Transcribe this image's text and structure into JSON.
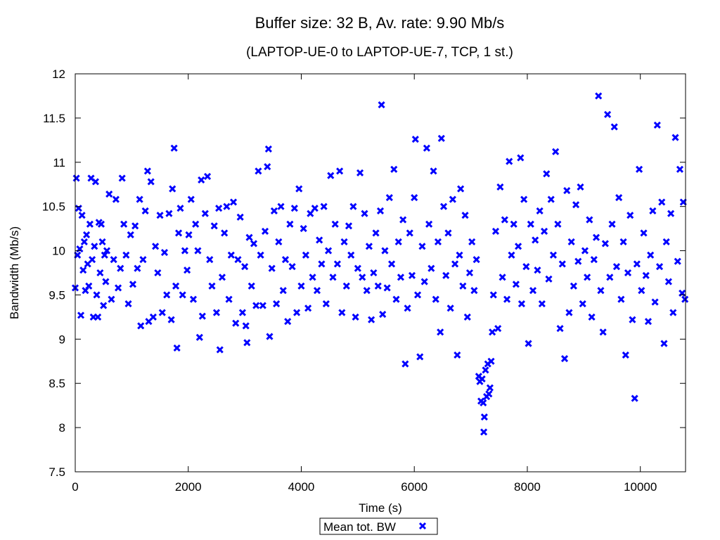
{
  "chart_data": {
    "type": "scatter",
    "title": "Buffer size: 32 B, Av. rate: 9.90 Mb/s",
    "subtitle": "(LAPTOP-UE-0 to LAPTOP-UE-7, TCP, 1 st.)",
    "xlabel": "Time (s)",
    "ylabel": "Bandwidth (Mb/s)",
    "xlim": [
      0,
      10800
    ],
    "ylim": [
      7.5,
      12
    ],
    "x_ticks": [
      {
        "value": 0,
        "label": "0"
      },
      {
        "value": 2000,
        "label": "2000"
      },
      {
        "value": 4000,
        "label": "4000"
      },
      {
        "value": 6000,
        "label": "6000"
      },
      {
        "value": 8000,
        "label": "8000"
      },
      {
        "value": 10000,
        "label": "10000"
      }
    ],
    "y_ticks": [
      {
        "value": 7.5,
        "label": "7.5"
      },
      {
        "value": 8,
        "label": "8"
      },
      {
        "value": 8.5,
        "label": "8.5"
      },
      {
        "value": 9,
        "label": "9"
      },
      {
        "value": 9.5,
        "label": "9.5"
      },
      {
        "value": 10,
        "label": "10"
      },
      {
        "value": 10.5,
        "label": "10.5"
      },
      {
        "value": 11,
        "label": "11"
      },
      {
        "value": 11.5,
        "label": "11.5"
      },
      {
        "value": 12,
        "label": "12"
      }
    ],
    "grid": false,
    "legend_position": "bottom-center",
    "series": [
      {
        "name": "Mean tot. BW",
        "color": "#0000ff",
        "marker": "x",
        "points": [
          [
            0,
            9.58
          ],
          [
            20,
            10.82
          ],
          [
            40,
            9.95
          ],
          [
            60,
            10.48
          ],
          [
            80,
            10.02
          ],
          [
            100,
            9.27
          ],
          [
            120,
            10.4
          ],
          [
            140,
            9.78
          ],
          [
            160,
            10.1
          ],
          [
            180,
            9.55
          ],
          [
            200,
            10.18
          ],
          [
            220,
            9.85
          ],
          [
            240,
            9.6
          ],
          [
            260,
            10.3
          ],
          [
            280,
            10.82
          ],
          [
            300,
            9.9
          ],
          [
            320,
            9.25
          ],
          [
            340,
            10.05
          ],
          [
            360,
            10.78
          ],
          [
            380,
            9.5
          ],
          [
            400,
            9.25
          ],
          [
            420,
            10.32
          ],
          [
            440,
            9.75
          ],
          [
            460,
            10.3
          ],
          [
            480,
            10.1
          ],
          [
            500,
            9.38
          ],
          [
            520,
            9.95
          ],
          [
            540,
            9.65
          ],
          [
            560,
            10.0
          ],
          [
            600,
            10.64
          ],
          [
            640,
            9.45
          ],
          [
            680,
            9.9
          ],
          [
            720,
            10.58
          ],
          [
            760,
            9.58
          ],
          [
            800,
            9.8
          ],
          [
            830,
            10.82
          ],
          [
            860,
            10.3
          ],
          [
            900,
            9.95
          ],
          [
            940,
            9.4
          ],
          [
            980,
            10.18
          ],
          [
            1020,
            9.62
          ],
          [
            1060,
            10.28
          ],
          [
            1100,
            9.8
          ],
          [
            1140,
            10.58
          ],
          [
            1160,
            9.15
          ],
          [
            1200,
            9.9
          ],
          [
            1240,
            10.45
          ],
          [
            1280,
            10.9
          ],
          [
            1300,
            9.2
          ],
          [
            1340,
            10.78
          ],
          [
            1380,
            9.25
          ],
          [
            1420,
            10.05
          ],
          [
            1460,
            9.75
          ],
          [
            1500,
            10.4
          ],
          [
            1540,
            9.3
          ],
          [
            1580,
            9.98
          ],
          [
            1620,
            9.5
          ],
          [
            1660,
            10.42
          ],
          [
            1700,
            9.22
          ],
          [
            1720,
            10.7
          ],
          [
            1750,
            11.16
          ],
          [
            1780,
            9.6
          ],
          [
            1800,
            8.9
          ],
          [
            1830,
            10.2
          ],
          [
            1860,
            10.48
          ],
          [
            1900,
            9.5
          ],
          [
            1940,
            10.0
          ],
          [
            1980,
            9.78
          ],
          [
            2010,
            10.18
          ],
          [
            2050,
            10.58
          ],
          [
            2090,
            9.45
          ],
          [
            2130,
            10.3
          ],
          [
            2170,
            10.0
          ],
          [
            2200,
            9.02
          ],
          [
            2230,
            10.8
          ],
          [
            2250,
            9.26
          ],
          [
            2300,
            10.42
          ],
          [
            2340,
            10.84
          ],
          [
            2380,
            9.9
          ],
          [
            2420,
            9.6
          ],
          [
            2460,
            10.28
          ],
          [
            2500,
            9.3
          ],
          [
            2540,
            10.48
          ],
          [
            2560,
            8.88
          ],
          [
            2600,
            9.7
          ],
          [
            2640,
            10.2
          ],
          [
            2680,
            10.5
          ],
          [
            2720,
            9.45
          ],
          [
            2760,
            9.95
          ],
          [
            2800,
            10.55
          ],
          [
            2840,
            9.18
          ],
          [
            2880,
            9.9
          ],
          [
            2920,
            10.38
          ],
          [
            2960,
            9.3
          ],
          [
            3000,
            9.82
          ],
          [
            3020,
            9.15
          ],
          [
            3040,
            8.96
          ],
          [
            3080,
            10.15
          ],
          [
            3120,
            9.6
          ],
          [
            3160,
            10.08
          ],
          [
            3200,
            9.38
          ],
          [
            3240,
            10.9
          ],
          [
            3280,
            9.95
          ],
          [
            3320,
            9.38
          ],
          [
            3360,
            10.22
          ],
          [
            3400,
            10.95
          ],
          [
            3420,
            11.15
          ],
          [
            3440,
            9.03
          ],
          [
            3480,
            9.8
          ],
          [
            3520,
            10.45
          ],
          [
            3560,
            9.4
          ],
          [
            3600,
            10.1
          ],
          [
            3640,
            10.5
          ],
          [
            3680,
            9.55
          ],
          [
            3720,
            9.9
          ],
          [
            3760,
            9.2
          ],
          [
            3800,
            10.3
          ],
          [
            3840,
            9.82
          ],
          [
            3880,
            10.48
          ],
          [
            3920,
            9.3
          ],
          [
            3960,
            10.7
          ],
          [
            4000,
            9.6
          ],
          [
            4040,
            10.25
          ],
          [
            4080,
            9.95
          ],
          [
            4120,
            9.35
          ],
          [
            4160,
            10.42
          ],
          [
            4200,
            9.7
          ],
          [
            4240,
            10.48
          ],
          [
            4280,
            9.55
          ],
          [
            4320,
            10.12
          ],
          [
            4360,
            9.85
          ],
          [
            4400,
            10.5
          ],
          [
            4440,
            9.4
          ],
          [
            4480,
            10.0
          ],
          [
            4520,
            10.85
          ],
          [
            4560,
            9.7
          ],
          [
            4600,
            10.3
          ],
          [
            4640,
            9.85
          ],
          [
            4680,
            10.9
          ],
          [
            4720,
            9.3
          ],
          [
            4760,
            10.1
          ],
          [
            4800,
            9.6
          ],
          [
            4840,
            10.28
          ],
          [
            4880,
            9.95
          ],
          [
            4920,
            10.5
          ],
          [
            4960,
            9.25
          ],
          [
            5000,
            9.8
          ],
          [
            5040,
            10.88
          ],
          [
            5080,
            9.7
          ],
          [
            5120,
            10.42
          ],
          [
            5160,
            9.55
          ],
          [
            5200,
            10.05
          ],
          [
            5240,
            9.22
          ],
          [
            5280,
            9.75
          ],
          [
            5320,
            10.2
          ],
          [
            5360,
            9.6
          ],
          [
            5400,
            10.45
          ],
          [
            5420,
            11.65
          ],
          [
            5440,
            9.28
          ],
          [
            5480,
            10.0
          ],
          [
            5520,
            9.58
          ],
          [
            5560,
            10.6
          ],
          [
            5600,
            9.85
          ],
          [
            5640,
            10.92
          ],
          [
            5680,
            9.45
          ],
          [
            5720,
            10.1
          ],
          [
            5760,
            9.7
          ],
          [
            5800,
            10.35
          ],
          [
            5840,
            8.72
          ],
          [
            5880,
            9.35
          ],
          [
            5920,
            10.2
          ],
          [
            5960,
            9.72
          ],
          [
            6000,
            10.6
          ],
          [
            6020,
            11.26
          ],
          [
            6060,
            9.5
          ],
          [
            6100,
            8.8
          ],
          [
            6140,
            10.05
          ],
          [
            6180,
            9.65
          ],
          [
            6220,
            11.16
          ],
          [
            6260,
            10.3
          ],
          [
            6300,
            9.8
          ],
          [
            6340,
            10.9
          ],
          [
            6380,
            9.45
          ],
          [
            6420,
            10.1
          ],
          [
            6460,
            9.08
          ],
          [
            6480,
            11.27
          ],
          [
            6520,
            10.5
          ],
          [
            6560,
            9.72
          ],
          [
            6600,
            10.2
          ],
          [
            6640,
            9.35
          ],
          [
            6680,
            10.58
          ],
          [
            6720,
            9.85
          ],
          [
            6760,
            8.82
          ],
          [
            6800,
            9.95
          ],
          [
            6820,
            10.7
          ],
          [
            6860,
            9.6
          ],
          [
            6900,
            10.4
          ],
          [
            6940,
            9.25
          ],
          [
            6980,
            9.75
          ],
          [
            7020,
            10.1
          ],
          [
            7060,
            9.55
          ],
          [
            7100,
            9.9
          ],
          [
            7140,
            8.58
          ],
          [
            7160,
            8.52
          ],
          [
            7180,
            8.3
          ],
          [
            7200,
            8.55
          ],
          [
            7220,
            8.28
          ],
          [
            7230,
            7.95
          ],
          [
            7240,
            8.12
          ],
          [
            7260,
            8.65
          ],
          [
            7280,
            8.35
          ],
          [
            7300,
            8.72
          ],
          [
            7320,
            8.38
          ],
          [
            7340,
            8.45
          ],
          [
            7360,
            8.75
          ],
          [
            7380,
            9.08
          ],
          [
            7400,
            9.5
          ],
          [
            7440,
            10.22
          ],
          [
            7480,
            9.12
          ],
          [
            7520,
            10.72
          ],
          [
            7560,
            9.7
          ],
          [
            7600,
            10.35
          ],
          [
            7640,
            9.45
          ],
          [
            7680,
            11.01
          ],
          [
            7720,
            9.95
          ],
          [
            7760,
            10.3
          ],
          [
            7800,
            9.62
          ],
          [
            7840,
            10.05
          ],
          [
            7880,
            11.05
          ],
          [
            7900,
            9.4
          ],
          [
            7940,
            10.58
          ],
          [
            7980,
            9.82
          ],
          [
            8020,
            8.95
          ],
          [
            8060,
            10.3
          ],
          [
            8100,
            9.55
          ],
          [
            8140,
            10.12
          ],
          [
            8180,
            9.78
          ],
          [
            8220,
            10.45
          ],
          [
            8260,
            9.4
          ],
          [
            8300,
            10.22
          ],
          [
            8340,
            10.87
          ],
          [
            8380,
            9.68
          ],
          [
            8420,
            10.58
          ],
          [
            8460,
            9.95
          ],
          [
            8500,
            11.12
          ],
          [
            8540,
            10.3
          ],
          [
            8580,
            9.12
          ],
          [
            8620,
            9.85
          ],
          [
            8660,
            8.78
          ],
          [
            8700,
            10.68
          ],
          [
            8740,
            9.3
          ],
          [
            8780,
            10.1
          ],
          [
            8820,
            9.6
          ],
          [
            8860,
            10.52
          ],
          [
            8900,
            9.88
          ],
          [
            8940,
            10.72
          ],
          [
            8980,
            9.4
          ],
          [
            9020,
            10.0
          ],
          [
            9060,
            9.7
          ],
          [
            9100,
            10.35
          ],
          [
            9140,
            9.25
          ],
          [
            9180,
            9.9
          ],
          [
            9220,
            10.15
          ],
          [
            9260,
            11.75
          ],
          [
            9300,
            9.55
          ],
          [
            9340,
            9.08
          ],
          [
            9380,
            10.08
          ],
          [
            9420,
            11.54
          ],
          [
            9460,
            9.7
          ],
          [
            9500,
            10.3
          ],
          [
            9540,
            11.4
          ],
          [
            9580,
            9.82
          ],
          [
            9620,
            10.6
          ],
          [
            9660,
            9.45
          ],
          [
            9700,
            10.1
          ],
          [
            9740,
            8.82
          ],
          [
            9780,
            9.75
          ],
          [
            9820,
            10.4
          ],
          [
            9860,
            9.22
          ],
          [
            9900,
            8.33
          ],
          [
            9940,
            9.85
          ],
          [
            9980,
            10.92
          ],
          [
            10020,
            9.55
          ],
          [
            10060,
            10.2
          ],
          [
            10100,
            9.72
          ],
          [
            10140,
            9.2
          ],
          [
            10180,
            9.95
          ],
          [
            10220,
            10.45
          ],
          [
            10260,
            9.42
          ],
          [
            10300,
            11.42
          ],
          [
            10340,
            9.82
          ],
          [
            10380,
            10.55
          ],
          [
            10420,
            8.95
          ],
          [
            10460,
            10.1
          ],
          [
            10500,
            9.65
          ],
          [
            10540,
            10.42
          ],
          [
            10580,
            9.3
          ],
          [
            10620,
            11.28
          ],
          [
            10660,
            9.88
          ],
          [
            10700,
            10.92
          ],
          [
            10740,
            9.52
          ],
          [
            10760,
            10.55
          ],
          [
            10790,
            9.45
          ]
        ]
      }
    ]
  }
}
